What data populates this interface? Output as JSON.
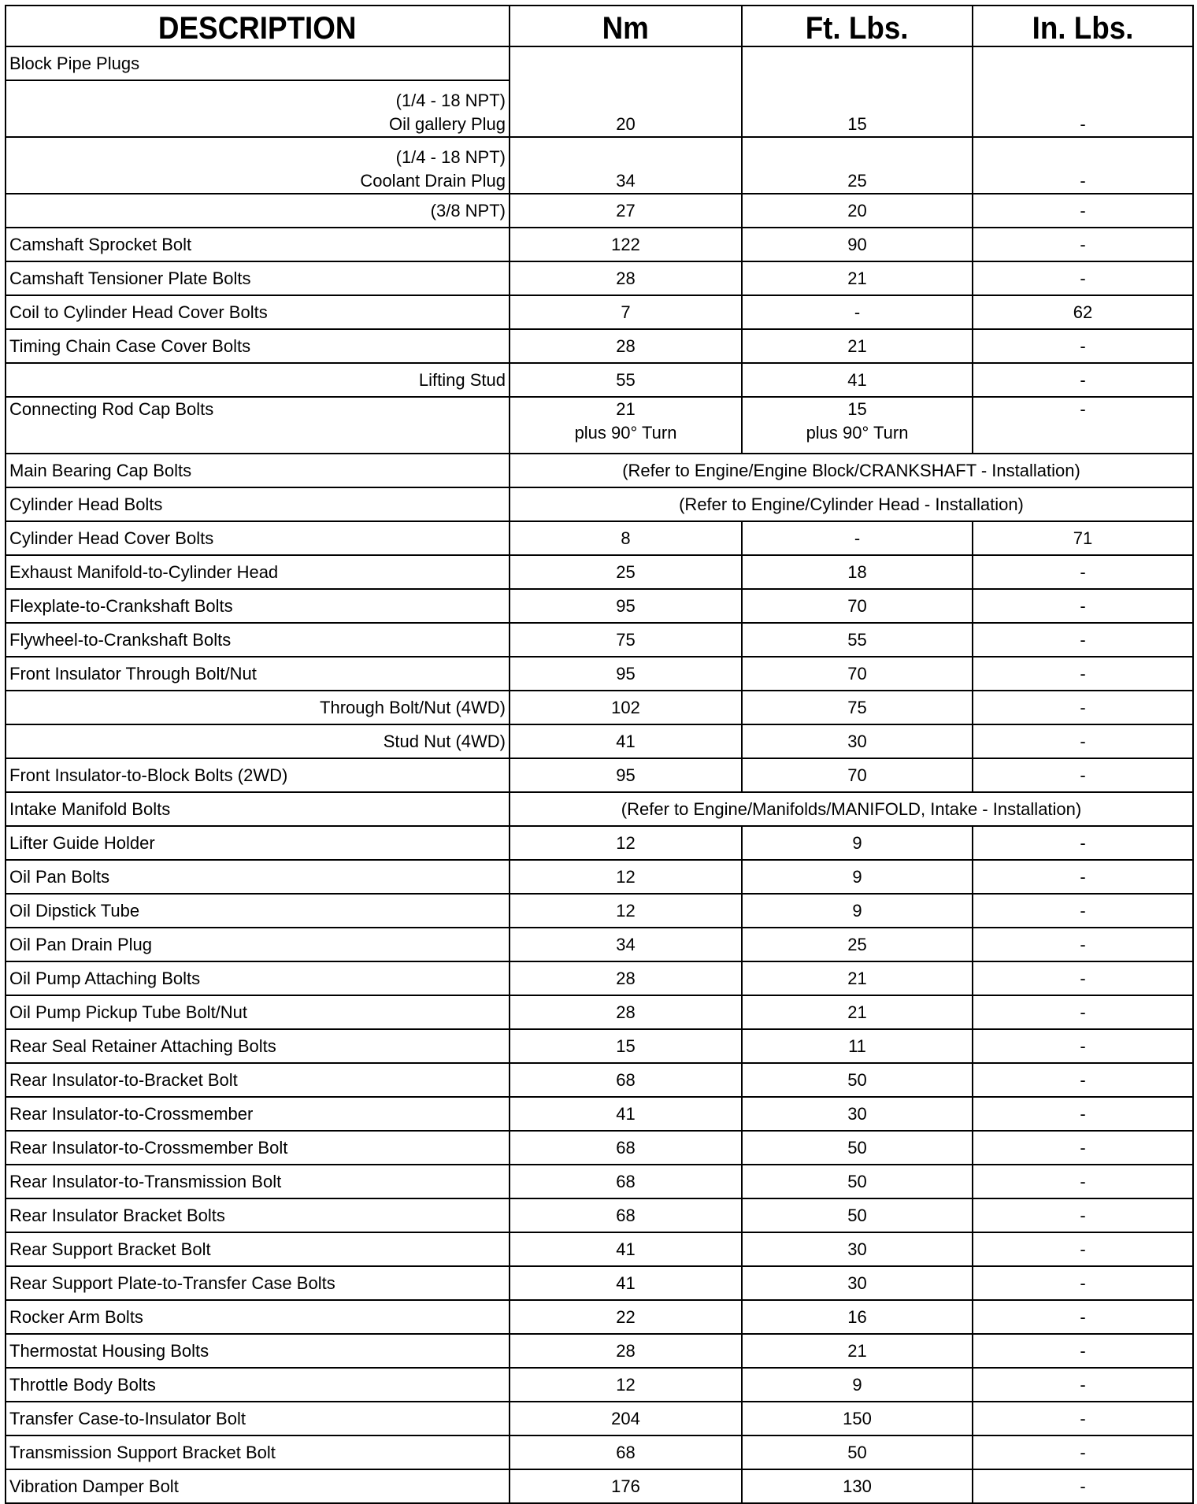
{
  "headers": [
    "DESCRIPTION",
    "Nm",
    "Ft. Lbs.",
    "In. Lbs."
  ],
  "rows": [
    {
      "desc": [
        "Block Pipe Plugs"
      ],
      "align": "left",
      "merge_values_with_next": true
    },
    {
      "desc": [
        "(1/4 - 18 NPT)",
        "Oil gallery Plug"
      ],
      "align": "right",
      "nm": [
        "20"
      ],
      "ft": [
        "15"
      ],
      "in": [
        "-"
      ]
    },
    {
      "desc": [
        "(1/4 - 18 NPT)",
        "Coolant Drain Plug"
      ],
      "align": "right",
      "nm": [
        "34"
      ],
      "ft": [
        "25"
      ],
      "in": [
        "-"
      ]
    },
    {
      "desc": [
        "(3/8 NPT)"
      ],
      "align": "right",
      "nm": [
        "27"
      ],
      "ft": [
        "20"
      ],
      "in": [
        "-"
      ]
    },
    {
      "desc": [
        "Camshaft Sprocket Bolt"
      ],
      "align": "left",
      "nm": [
        "122"
      ],
      "ft": [
        "90"
      ],
      "in": [
        "-"
      ]
    },
    {
      "desc": [
        "Camshaft Tensioner Plate Bolts"
      ],
      "align": "left",
      "nm": [
        "28"
      ],
      "ft": [
        "21"
      ],
      "in": [
        "-"
      ]
    },
    {
      "desc": [
        "Coil to Cylinder Head Cover Bolts"
      ],
      "align": "left",
      "nm": [
        "7"
      ],
      "ft": [
        "-"
      ],
      "in": [
        "62"
      ]
    },
    {
      "desc": [
        "Timing Chain Case Cover Bolts"
      ],
      "align": "left",
      "nm": [
        "28"
      ],
      "ft": [
        "21"
      ],
      "in": [
        "-"
      ]
    },
    {
      "desc": [
        "Lifting Stud"
      ],
      "align": "right",
      "nm": [
        "55"
      ],
      "ft": [
        "41"
      ],
      "in": [
        "-"
      ]
    },
    {
      "desc": [
        "Connecting Rod Cap Bolts"
      ],
      "align": "left",
      "top": true,
      "nm": [
        "21",
        "plus 90° Turn"
      ],
      "ft": [
        "15",
        "plus 90° Turn"
      ],
      "in": [
        "-"
      ]
    },
    {
      "desc": [
        "Main Bearing Cap Bolts"
      ],
      "align": "left",
      "refer": "(Refer to  Engine/Engine Block/CRANKSHAFT - Installation)"
    },
    {
      "desc": [
        "Cylinder Head Bolts"
      ],
      "align": "left",
      "refer": "(Refer to Engine/Cylinder Head - Installation)"
    },
    {
      "desc": [
        "Cylinder Head Cover Bolts"
      ],
      "align": "left",
      "nm": [
        "8"
      ],
      "ft": [
        "-"
      ],
      "in": [
        "71"
      ]
    },
    {
      "desc": [
        "Exhaust Manifold-to-Cylinder Head"
      ],
      "align": "left",
      "nm": [
        "25"
      ],
      "ft": [
        "18"
      ],
      "in": [
        "-"
      ]
    },
    {
      "desc": [
        "Flexplate-to-Crankshaft Bolts"
      ],
      "align": "left",
      "nm": [
        "95"
      ],
      "ft": [
        "70"
      ],
      "in": [
        "-"
      ]
    },
    {
      "desc": [
        "Flywheel-to-Crankshaft Bolts"
      ],
      "align": "left",
      "nm": [
        "75"
      ],
      "ft": [
        "55"
      ],
      "in": [
        "-"
      ]
    },
    {
      "desc": [
        "Front Insulator Through Bolt/Nut"
      ],
      "align": "left",
      "nm": [
        "95"
      ],
      "ft": [
        "70"
      ],
      "in": [
        "-"
      ]
    },
    {
      "desc": [
        "Through Bolt/Nut (4WD)"
      ],
      "align": "right",
      "nm": [
        "102"
      ],
      "ft": [
        "75"
      ],
      "in": [
        "-"
      ]
    },
    {
      "desc": [
        "Stud Nut (4WD)"
      ],
      "align": "right",
      "nm": [
        "41"
      ],
      "ft": [
        "30"
      ],
      "in": [
        "-"
      ]
    },
    {
      "desc": [
        "Front Insulator-to-Block Bolts (2WD)"
      ],
      "align": "left",
      "nm": [
        "95"
      ],
      "ft": [
        "70"
      ],
      "in": [
        "-"
      ]
    },
    {
      "desc": [
        "Intake Manifold Bolts"
      ],
      "align": "left",
      "refer": "(Refer to  Engine/Manifolds/MANIFOLD, Intake - Installation)"
    },
    {
      "desc": [
        "Lifter Guide Holder"
      ],
      "align": "left",
      "nm": [
        "12"
      ],
      "ft": [
        "9"
      ],
      "in": [
        "-"
      ]
    },
    {
      "desc": [
        "Oil Pan Bolts"
      ],
      "align": "left",
      "nm": [
        "12"
      ],
      "ft": [
        "9"
      ],
      "in": [
        "-"
      ]
    },
    {
      "desc": [
        "Oil Dipstick Tube"
      ],
      "align": "left",
      "nm": [
        "12"
      ],
      "ft": [
        "9"
      ],
      "in": [
        "-"
      ]
    },
    {
      "desc": [
        "Oil Pan Drain Plug"
      ],
      "align": "left",
      "nm": [
        "34"
      ],
      "ft": [
        "25"
      ],
      "in": [
        "-"
      ]
    },
    {
      "desc": [
        "Oil Pump Attaching Bolts"
      ],
      "align": "left",
      "nm": [
        "28"
      ],
      "ft": [
        "21"
      ],
      "in": [
        "-"
      ]
    },
    {
      "desc": [
        "Oil Pump Pickup Tube Bolt/Nut"
      ],
      "align": "left",
      "nm": [
        "28"
      ],
      "ft": [
        "21"
      ],
      "in": [
        "-"
      ]
    },
    {
      "desc": [
        "Rear Seal Retainer Attaching Bolts"
      ],
      "align": "left",
      "nm": [
        "15"
      ],
      "ft": [
        "11"
      ],
      "in": [
        "-"
      ]
    },
    {
      "desc": [
        "Rear Insulator-to-Bracket Bolt"
      ],
      "align": "left",
      "nm": [
        "68"
      ],
      "ft": [
        "50"
      ],
      "in": [
        "-"
      ]
    },
    {
      "desc": [
        "Rear Insulator-to-Crossmember"
      ],
      "align": "left",
      "nm": [
        "41"
      ],
      "ft": [
        "30"
      ],
      "in": [
        "-"
      ]
    },
    {
      "desc": [
        "Rear Insulator-to-Crossmember Bolt"
      ],
      "align": "left",
      "nm": [
        "68"
      ],
      "ft": [
        "50"
      ],
      "in": [
        "-"
      ]
    },
    {
      "desc": [
        "Rear Insulator-to-Transmission Bolt"
      ],
      "align": "left",
      "nm": [
        "68"
      ],
      "ft": [
        "50"
      ],
      "in": [
        "-"
      ]
    },
    {
      "desc": [
        "Rear Insulator Bracket Bolts"
      ],
      "align": "left",
      "nm": [
        "68"
      ],
      "ft": [
        "50"
      ],
      "in": [
        "-"
      ]
    },
    {
      "desc": [
        "Rear Support Bracket Bolt"
      ],
      "align": "left",
      "nm": [
        "41"
      ],
      "ft": [
        "30"
      ],
      "in": [
        "-"
      ]
    },
    {
      "desc": [
        "Rear Support Plate-to-Transfer Case Bolts"
      ],
      "align": "left",
      "nm": [
        "41"
      ],
      "ft": [
        "30"
      ],
      "in": [
        "-"
      ]
    },
    {
      "desc": [
        "Rocker Arm Bolts"
      ],
      "align": "left",
      "nm": [
        "22"
      ],
      "ft": [
        "16"
      ],
      "in": [
        "-"
      ]
    },
    {
      "desc": [
        "Thermostat Housing Bolts"
      ],
      "align": "left",
      "nm": [
        "28"
      ],
      "ft": [
        "21"
      ],
      "in": [
        "-"
      ]
    },
    {
      "desc": [
        "Throttle Body Bolts"
      ],
      "align": "left",
      "nm": [
        "12"
      ],
      "ft": [
        "9"
      ],
      "in": [
        "-"
      ]
    },
    {
      "desc": [
        "Transfer Case-to-Insulator Bolt"
      ],
      "align": "left",
      "nm": [
        "204"
      ],
      "ft": [
        "150"
      ],
      "in": [
        "-"
      ]
    },
    {
      "desc": [
        "Transmission Support Bracket Bolt"
      ],
      "align": "left",
      "nm": [
        "68"
      ],
      "ft": [
        "50"
      ],
      "in": [
        "-"
      ]
    },
    {
      "desc": [
        "Vibration Damper Bolt"
      ],
      "align": "left",
      "nm": [
        "176"
      ],
      "ft": [
        "130"
      ],
      "in": [
        "-"
      ]
    }
  ]
}
